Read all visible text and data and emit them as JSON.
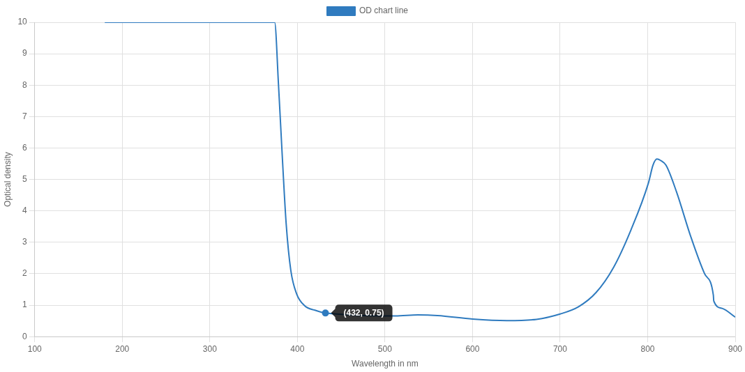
{
  "chart_data": {
    "type": "line",
    "xlabel": "Wavelength in nm",
    "ylabel": "Optical density",
    "xlim": [
      100,
      900
    ],
    "xticks": [
      100,
      200,
      300,
      400,
      500,
      600,
      700,
      800,
      900
    ],
    "ylim": [
      0,
      10
    ],
    "yticks": [
      0,
      1,
      2,
      3,
      4,
      5,
      6,
      7,
      8,
      9,
      10
    ],
    "grid": true,
    "legend": "top",
    "marker": "none",
    "line_style": "solid",
    "series": [
      {
        "name": "OD chart line",
        "color": "#2f7bbf",
        "x": [
          180,
          250,
          300,
          350,
          374,
          378.4,
          382.6,
          387.2,
          392.5,
          399.1,
          408.4,
          420,
          432,
          512,
          537.5,
          560,
          600,
          639,
          673,
          700,
          721,
          741,
          761,
          781,
          801,
          806,
          810.6,
          815,
          821,
          833,
          849,
          865,
          875,
          875.5,
          885,
          900
        ],
        "values": [
          10,
          10,
          10,
          10,
          10,
          8.02,
          5.8,
          3.58,
          2.1,
          1.36,
          0.98,
          0.84,
          0.75,
          0.66,
          0.69,
          0.67,
          0.56,
          0.51,
          0.55,
          0.72,
          0.95,
          1.4,
          2.2,
          3.4,
          4.9,
          5.45,
          5.65,
          5.6,
          5.45,
          4.6,
          3.2,
          2.0,
          1.32,
          1.13,
          0.9,
          0.62
        ]
      }
    ],
    "annotations": [
      {
        "text": "(432, 0.75)",
        "x": 432,
        "y": 0.75
      }
    ]
  }
}
